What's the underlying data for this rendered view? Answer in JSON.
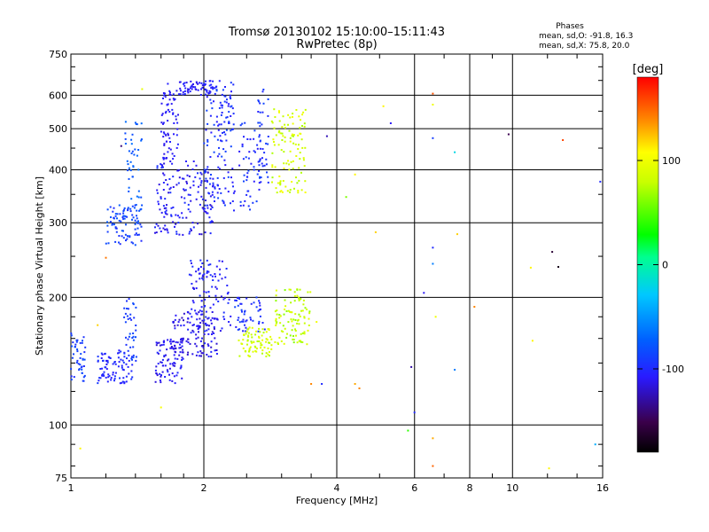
{
  "chart_data": {
    "type": "scatter",
    "title": "Tromsø 20130102 15:10:00–15:11:43",
    "subtitle": "RwPretec (8p)",
    "stats": {
      "heading": "Phases",
      "line_o": "mean, sd,O: -91.8, 16.3",
      "line_x": "mean, sd,X:  75.8, 20.0"
    },
    "xlabel": "Frequency [MHz]",
    "ylabel": "Stationary phase Virtual Height [km]",
    "xscale": "log",
    "yscale": "log",
    "xlim": [
      1,
      16
    ],
    "ylim": [
      75,
      750
    ],
    "xticks": [
      {
        "value": 1,
        "label": "1"
      },
      {
        "value": 2,
        "label": "2"
      },
      {
        "value": 4,
        "label": "4"
      },
      {
        "value": 6,
        "label": "6"
      },
      {
        "value": 8,
        "label": "8"
      },
      {
        "value": 10,
        "label": "10"
      },
      {
        "value": 16,
        "label": "16"
      }
    ],
    "xgrid": [
      2,
      4,
      6,
      8,
      10
    ],
    "yticks": [
      {
        "value": 75,
        "label": "75"
      },
      {
        "value": 100,
        "label": "100"
      },
      {
        "value": 200,
        "label": "200"
      },
      {
        "value": 300,
        "label": "300"
      },
      {
        "value": 400,
        "label": "400"
      },
      {
        "value": 500,
        "label": "500"
      },
      {
        "value": 600,
        "label": "600"
      },
      {
        "value": 750,
        "label": "750"
      }
    ],
    "ygrid": [
      100,
      200,
      300,
      400,
      500,
      600
    ],
    "grid": true,
    "colorbar": {
      "label": "[deg]",
      "range": [
        -180,
        180
      ],
      "ticks": [
        {
          "value": 100,
          "label": "100"
        },
        {
          "value": 0,
          "label": "0"
        },
        {
          "value": -100,
          "label": "-100"
        }
      ]
    },
    "clusters": [
      {
        "f": [
          1.0,
          1.08
        ],
        "h": [
          125,
          165
        ],
        "phase": [
          -100,
          -80
        ],
        "n": 45
      },
      {
        "f": [
          1.15,
          1.38
        ],
        "h": [
          125,
          150
        ],
        "phase": [
          -110,
          -90
        ],
        "n": 85
      },
      {
        "f": [
          1.32,
          1.42
        ],
        "h": [
          140,
          200
        ],
        "phase": [
          -100,
          -80
        ],
        "n": 40
      },
      {
        "f": [
          1.55,
          1.8
        ],
        "h": [
          125,
          160
        ],
        "phase": [
          -120,
          -100
        ],
        "n": 90
      },
      {
        "f": [
          1.7,
          2.15
        ],
        "h": [
          145,
          185
        ],
        "phase": [
          -125,
          -100
        ],
        "n": 110
      },
      {
        "f": [
          1.85,
          2.3
        ],
        "h": [
          165,
          245
        ],
        "phase": [
          -115,
          -95
        ],
        "n": 110
      },
      {
        "f": [
          2.35,
          2.75
        ],
        "h": [
          165,
          200
        ],
        "phase": [
          -110,
          -85
        ],
        "n": 50
      },
      {
        "f": [
          2.4,
          2.85
        ],
        "h": [
          145,
          170
        ],
        "phase": [
          70,
          100
        ],
        "n": 80
      },
      {
        "f": [
          2.9,
          3.5
        ],
        "h": [
          155,
          210
        ],
        "phase": [
          60,
          95
        ],
        "n": 100
      },
      {
        "f": [
          1.2,
          1.45
        ],
        "h": [
          265,
          330
        ],
        "phase": [
          -100,
          -75
        ],
        "n": 90
      },
      {
        "f": [
          1.32,
          1.45
        ],
        "h": [
          330,
          520
        ],
        "phase": [
          -85,
          -65
        ],
        "n": 40
      },
      {
        "f": [
          1.55,
          2.1
        ],
        "h": [
          280,
          420
        ],
        "phase": [
          -120,
          -95
        ],
        "n": 160
      },
      {
        "f": [
          1.6,
          1.75
        ],
        "h": [
          420,
          640
        ],
        "phase": [
          -115,
          -100
        ],
        "n": 70
      },
      {
        "f": [
          1.75,
          2.1
        ],
        "h": [
          600,
          650
        ],
        "phase": [
          -115,
          -100
        ],
        "n": 60
      },
      {
        "f": [
          2.0,
          2.35
        ],
        "h": [
          320,
          650
        ],
        "phase": [
          -110,
          -85
        ],
        "n": 140
      },
      {
        "f": [
          2.4,
          2.7
        ],
        "h": [
          320,
          520
        ],
        "phase": [
          -110,
          -85
        ],
        "n": 60
      },
      {
        "f": [
          2.65,
          2.8
        ],
        "h": [
          360,
          620
        ],
        "phase": [
          -105,
          -85
        ],
        "n": 30
      },
      {
        "f": [
          2.85,
          3.4
        ],
        "h": [
          350,
          560
        ],
        "phase": [
          70,
          105
        ],
        "n": 110
      }
    ],
    "points": [
      {
        "f": 1.45,
        "h": 620,
        "phase": 95
      },
      {
        "f": 1.3,
        "h": 455,
        "phase": -140
      },
      {
        "f": 1.2,
        "h": 248,
        "phase": 145
      },
      {
        "f": 1.15,
        "h": 172,
        "phase": 120
      },
      {
        "f": 1.05,
        "h": 88,
        "phase": 110
      },
      {
        "f": 1.6,
        "h": 110,
        "phase": 105
      },
      {
        "f": 3.8,
        "h": 480,
        "phase": -125
      },
      {
        "f": 5.1,
        "h": 565,
        "phase": 110
      },
      {
        "f": 5.3,
        "h": 515,
        "phase": -110
      },
      {
        "f": 6.6,
        "h": 605,
        "phase": 155
      },
      {
        "f": 6.6,
        "h": 570,
        "phase": 100
      },
      {
        "f": 6.6,
        "h": 475,
        "phase": -90
      },
      {
        "f": 7.4,
        "h": 440,
        "phase": -20
      },
      {
        "f": 9.8,
        "h": 485,
        "phase": -150
      },
      {
        "f": 13.0,
        "h": 470,
        "phase": 160
      },
      {
        "f": 15.8,
        "h": 375,
        "phase": -100
      },
      {
        "f": 4.4,
        "h": 390,
        "phase": 110
      },
      {
        "f": 4.2,
        "h": 345,
        "phase": 60
      },
      {
        "f": 4.9,
        "h": 285,
        "phase": 120
      },
      {
        "f": 6.6,
        "h": 262,
        "phase": -100
      },
      {
        "f": 6.6,
        "h": 240,
        "phase": -60
      },
      {
        "f": 7.5,
        "h": 282,
        "phase": 120
      },
      {
        "f": 12.3,
        "h": 256,
        "phase": -160
      },
      {
        "f": 12.7,
        "h": 236,
        "phase": -170
      },
      {
        "f": 11.0,
        "h": 235,
        "phase": 110
      },
      {
        "f": 6.3,
        "h": 205,
        "phase": -110
      },
      {
        "f": 6.7,
        "h": 180,
        "phase": 100
      },
      {
        "f": 8.2,
        "h": 190,
        "phase": 140
      },
      {
        "f": 5.9,
        "h": 137,
        "phase": -130
      },
      {
        "f": 7.4,
        "h": 135,
        "phase": -60
      },
      {
        "f": 11.1,
        "h": 158,
        "phase": 110
      },
      {
        "f": 3.7,
        "h": 125,
        "phase": -100
      },
      {
        "f": 4.4,
        "h": 125,
        "phase": 130
      },
      {
        "f": 4.5,
        "h": 122,
        "phase": 140
      },
      {
        "f": 6.0,
        "h": 107,
        "phase": -100
      },
      {
        "f": 5.8,
        "h": 97,
        "phase": 40
      },
      {
        "f": 6.6,
        "h": 93,
        "phase": 130
      },
      {
        "f": 6.6,
        "h": 80,
        "phase": 150
      },
      {
        "f": 12.1,
        "h": 79,
        "phase": 110
      },
      {
        "f": 15.4,
        "h": 90,
        "phase": -40
      },
      {
        "f": 3.6,
        "h": 175,
        "phase": 100
      },
      {
        "f": 3.5,
        "h": 125,
        "phase": 140
      }
    ]
  }
}
